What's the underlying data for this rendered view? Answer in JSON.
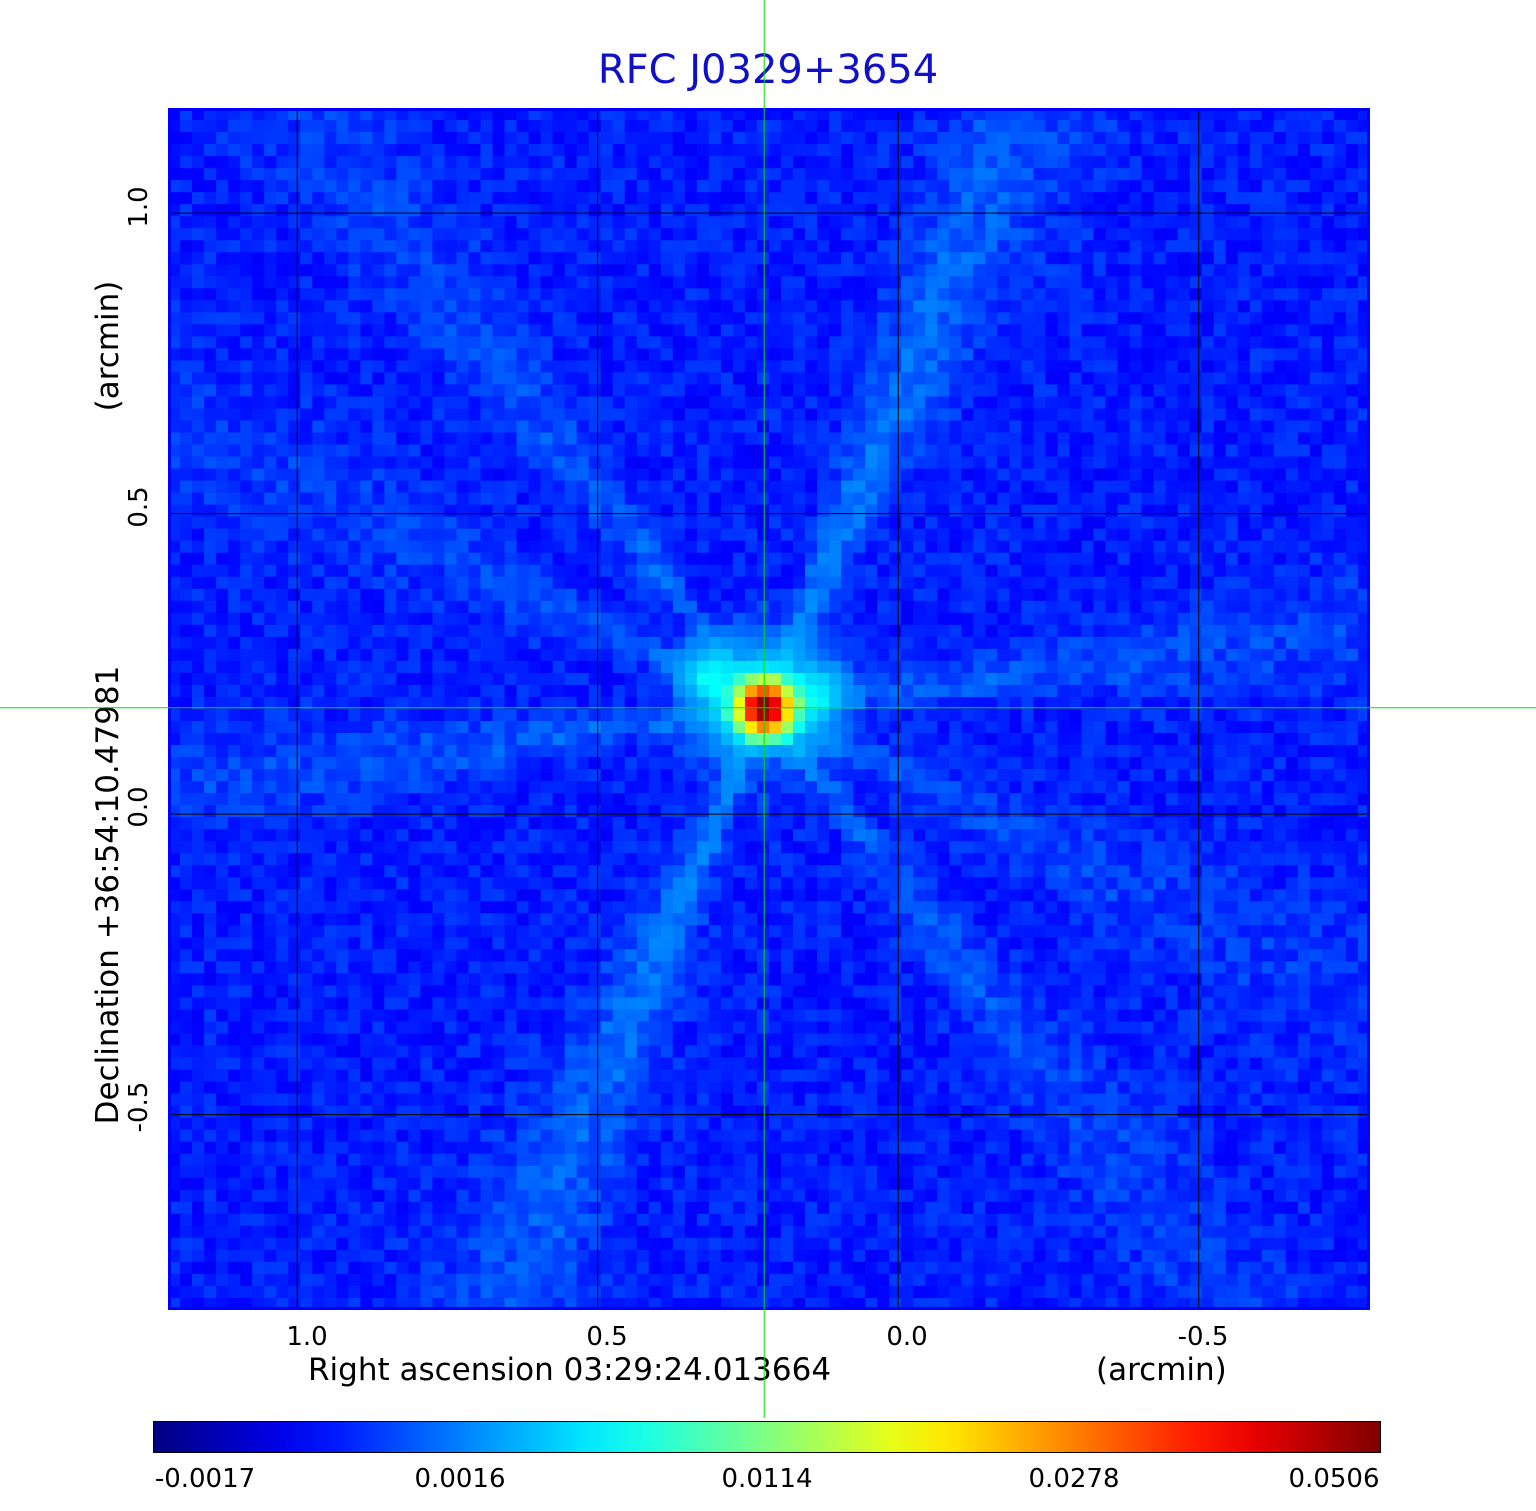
{
  "chart_data": {
    "type": "heatmap",
    "title": "RFC J0329+3654",
    "xlabel": "Right ascension  03:29:24.013664",
    "xlabel_unit": "(arcmin)",
    "ylabel": "Declination  +36:54:10.47981",
    "ylabel_unit": "(arcmin)",
    "x_ticks": [
      "1.0",
      "0.5",
      "0.0",
      "-0.5"
    ],
    "x_tick_values": [
      1.0,
      0.5,
      0.0,
      -0.5
    ],
    "y_ticks": [
      "1.0",
      "0.5",
      "0.0",
      "-0.5"
    ],
    "y_tick_values": [
      1.0,
      0.5,
      0.0,
      -0.5
    ],
    "xlim": [
      1.215,
      -0.785
    ],
    "ylim": [
      -0.825,
      1.175
    ],
    "grid": true,
    "colormap": "jet",
    "colorbar": {
      "ticks": [
        "-0.0017",
        "0.0016",
        "0.0114",
        "0.0278",
        "0.0506"
      ],
      "values": [
        -0.0017,
        0.0016,
        0.0114,
        0.0278,
        0.0506
      ]
    },
    "peak_position": [
      0.223,
      0.177
    ],
    "peak_value": 0.0506,
    "background_value": 0.0003,
    "secondary_blobs": [
      {
        "x": 0.318,
        "y": 0.232,
        "value": 0.0045
      },
      {
        "x": 0.133,
        "y": 0.205,
        "value": 0.0035
      }
    ],
    "crosshair_color": "#00e000",
    "title_color": "#1010c8",
    "frame_color": "#0000ff"
  }
}
